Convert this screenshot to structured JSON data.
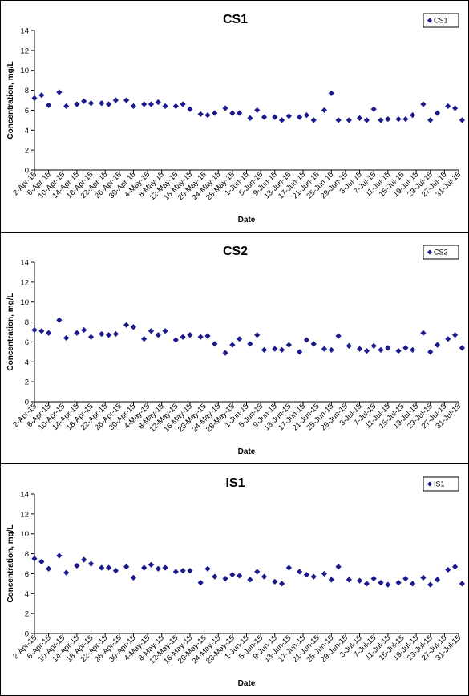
{
  "chart_data": [
    {
      "type": "scatter",
      "title": "CS1",
      "xlabel": "Date",
      "ylabel": "Concentration, mg/L",
      "ylim": [
        0,
        14
      ],
      "yticks": [
        "0",
        "2",
        "4",
        "6",
        "8",
        "10",
        "12",
        "14"
      ],
      "xlim": [
        "2-Apr-15",
        "31-Jul-15"
      ],
      "xticks": [
        "2-Apr-15",
        "6-Apr-15",
        "10-Apr-15",
        "14-Apr-15",
        "18-Apr-15",
        "22-Apr-15",
        "26-Apr-15",
        "30-Apr-15",
        "4-May-15",
        "8-May-15",
        "12-May-15",
        "16-May-15",
        "20-May-15",
        "24-May-15",
        "28-May-15",
        "1-Jun-15",
        "5-Jun-15",
        "9-Jun-15",
        "13-Jun-15",
        "17-Jun-15",
        "21-Jun-15",
        "25-Jun-15",
        "29-Jun-15",
        "3-Jul-15",
        "7-Jul-15",
        "11-Jul-15",
        "15-Jul-15",
        "19-Jul-15",
        "23-Jul-15",
        "27-Jul-15",
        "31-Jul-15"
      ],
      "legend": "top-right",
      "grid": false,
      "marker_color": "#1a1a8c",
      "series": [
        {
          "name": "CS1",
          "x": [
            "2-Apr-15",
            "4-Apr-15",
            "6-Apr-15",
            "9-Apr-15",
            "11-Apr-15",
            "14-Apr-15",
            "16-Apr-15",
            "18-Apr-15",
            "21-Apr-15",
            "23-Apr-15",
            "25-Apr-15",
            "28-Apr-15",
            "30-Apr-15",
            "3-May-15",
            "5-May-15",
            "7-May-15",
            "9-May-15",
            "12-May-15",
            "14-May-15",
            "16-May-15",
            "19-May-15",
            "21-May-15",
            "23-May-15",
            "26-May-15",
            "28-May-15",
            "30-May-15",
            "2-Jun-15",
            "4-Jun-15",
            "6-Jun-15",
            "9-Jun-15",
            "11-Jun-15",
            "13-Jun-15",
            "16-Jun-15",
            "18-Jun-15",
            "20-Jun-15",
            "23-Jun-15",
            "25-Jun-15",
            "27-Jun-15",
            "30-Jun-15",
            "3-Jul-15",
            "5-Jul-15",
            "7-Jul-15",
            "9-Jul-15",
            "11-Jul-15",
            "14-Jul-15",
            "16-Jul-15",
            "18-Jul-15",
            "21-Jul-15",
            "23-Jul-15",
            "25-Jul-15",
            "28-Jul-15",
            "30-Jul-15",
            "1-Aug-15"
          ],
          "y": [
            7.2,
            7.5,
            6.5,
            7.8,
            6.4,
            6.6,
            6.9,
            6.7,
            6.7,
            6.6,
            7.0,
            7.0,
            6.4,
            6.6,
            6.6,
            6.8,
            6.4,
            6.4,
            6.6,
            6.1,
            5.6,
            5.5,
            5.7,
            6.2,
            5.7,
            5.7,
            5.2,
            6.0,
            5.3,
            5.3,
            5.0,
            5.4,
            5.3,
            5.5,
            5.0,
            6.0,
            7.7,
            5.0,
            5.0,
            5.2,
            5.0,
            6.1,
            5.0,
            5.1,
            5.1,
            5.1,
            5.5,
            6.6,
            5.0,
            5.7,
            6.4,
            6.2,
            5.0
          ]
        }
      ]
    },
    {
      "type": "scatter",
      "title": "CS2",
      "xlabel": "Date",
      "ylabel": "Concentration, mg/L",
      "ylim": [
        0,
        14
      ],
      "yticks": [
        "0",
        "2",
        "4",
        "6",
        "8",
        "10",
        "12",
        "14"
      ],
      "xlim": [
        "2-Apr-15",
        "31-Jul-15"
      ],
      "xticks": [
        "2-Apr-15",
        "6-Apr-15",
        "10-Apr-15",
        "14-Apr-15",
        "18-Apr-15",
        "22-Apr-15",
        "26-Apr-15",
        "30-Apr-15",
        "4-May-15",
        "8-May-15",
        "12-May-15",
        "16-May-15",
        "20-May-15",
        "24-May-15",
        "28-May-15",
        "1-Jun-15",
        "5-Jun-15",
        "9-Jun-15",
        "13-Jun-15",
        "17-Jun-15",
        "21-Jun-15",
        "25-Jun-15",
        "29-Jun-15",
        "3-Jul-15",
        "7-Jul-15",
        "11-Jul-15",
        "15-Jul-15",
        "19-Jul-15",
        "23-Jul-15",
        "27-Jul-15",
        "31-Jul-15"
      ],
      "legend": "top-right",
      "grid": false,
      "marker_color": "#1a1a8c",
      "series": [
        {
          "name": "CS2",
          "x": [
            "2-Apr-15",
            "4-Apr-15",
            "6-Apr-15",
            "9-Apr-15",
            "11-Apr-15",
            "14-Apr-15",
            "16-Apr-15",
            "18-Apr-15",
            "21-Apr-15",
            "23-Apr-15",
            "25-Apr-15",
            "28-Apr-15",
            "30-Apr-15",
            "3-May-15",
            "5-May-15",
            "7-May-15",
            "9-May-15",
            "12-May-15",
            "14-May-15",
            "16-May-15",
            "19-May-15",
            "21-May-15",
            "23-May-15",
            "26-May-15",
            "28-May-15",
            "30-May-15",
            "2-Jun-15",
            "4-Jun-15",
            "6-Jun-15",
            "9-Jun-15",
            "11-Jun-15",
            "13-Jun-15",
            "16-Jun-15",
            "18-Jun-15",
            "20-Jun-15",
            "23-Jun-15",
            "25-Jun-15",
            "27-Jun-15",
            "30-Jun-15",
            "3-Jul-15",
            "5-Jul-15",
            "7-Jul-15",
            "9-Jul-15",
            "11-Jul-15",
            "14-Jul-15",
            "16-Jul-15",
            "18-Jul-15",
            "21-Jul-15",
            "23-Jul-15",
            "25-Jul-15",
            "28-Jul-15",
            "30-Jul-15",
            "1-Aug-15"
          ],
          "y": [
            7.2,
            7.1,
            6.9,
            8.2,
            6.4,
            6.9,
            7.2,
            6.5,
            6.8,
            6.7,
            6.8,
            7.7,
            7.5,
            6.3,
            7.1,
            6.7,
            7.1,
            6.2,
            6.5,
            6.7,
            6.5,
            6.6,
            5.8,
            4.9,
            5.7,
            6.3,
            5.8,
            6.7,
            5.2,
            5.3,
            5.2,
            5.7,
            5.0,
            6.2,
            5.8,
            5.3,
            5.2,
            6.6,
            5.6,
            5.3,
            5.1,
            5.6,
            5.2,
            5.4,
            5.1,
            5.4,
            5.2,
            6.9,
            5.0,
            5.7,
            6.3,
            6.7,
            5.4
          ]
        }
      ]
    },
    {
      "type": "scatter",
      "title": "IS1",
      "xlabel": "Date",
      "ylabel": "Concentration, mg/L",
      "ylim": [
        0,
        14
      ],
      "yticks": [
        "0",
        "2",
        "4",
        "6",
        "8",
        "10",
        "12",
        "14"
      ],
      "xlim": [
        "2-Apr-15",
        "31-Jul-15"
      ],
      "xticks": [
        "2-Apr-15",
        "6-Apr-15",
        "10-Apr-15",
        "14-Apr-15",
        "18-Apr-15",
        "22-Apr-15",
        "26-Apr-15",
        "30-Apr-15",
        "4-May-15",
        "8-May-15",
        "12-May-15",
        "16-May-15",
        "20-May-15",
        "24-May-15",
        "28-May-15",
        "1-Jun-15",
        "5-Jun-15",
        "9-Jun-15",
        "13-Jun-15",
        "17-Jun-15",
        "21-Jun-15",
        "25-Jun-15",
        "29-Jun-15",
        "3-Jul-15",
        "7-Jul-15",
        "11-Jul-15",
        "15-Jul-15",
        "19-Jul-15",
        "23-Jul-15",
        "27-Jul-15",
        "31-Jul-15"
      ],
      "legend": "top-right",
      "grid": false,
      "marker_color": "#1a1a8c",
      "series": [
        {
          "name": "IS1",
          "x": [
            "2-Apr-15",
            "4-Apr-15",
            "6-Apr-15",
            "9-Apr-15",
            "11-Apr-15",
            "14-Apr-15",
            "16-Apr-15",
            "18-Apr-15",
            "21-Apr-15",
            "23-Apr-15",
            "25-Apr-15",
            "28-Apr-15",
            "30-Apr-15",
            "3-May-15",
            "5-May-15",
            "7-May-15",
            "9-May-15",
            "12-May-15",
            "14-May-15",
            "16-May-15",
            "19-May-15",
            "21-May-15",
            "23-May-15",
            "26-May-15",
            "28-May-15",
            "30-May-15",
            "2-Jun-15",
            "4-Jun-15",
            "6-Jun-15",
            "9-Jun-15",
            "11-Jun-15",
            "13-Jun-15",
            "16-Jun-15",
            "18-Jun-15",
            "20-Jun-15",
            "23-Jun-15",
            "25-Jun-15",
            "27-Jun-15",
            "30-Jun-15",
            "3-Jul-15",
            "5-Jul-15",
            "7-Jul-15",
            "9-Jul-15",
            "11-Jul-15",
            "14-Jul-15",
            "16-Jul-15",
            "18-Jul-15",
            "21-Jul-15",
            "23-Jul-15",
            "25-Jul-15",
            "28-Jul-15",
            "30-Jul-15",
            "1-Aug-15"
          ],
          "y": [
            7.5,
            7.2,
            6.5,
            7.8,
            6.1,
            6.8,
            7.4,
            7.0,
            6.6,
            6.6,
            6.3,
            6.7,
            5.6,
            6.6,
            6.9,
            6.5,
            6.6,
            6.2,
            6.3,
            6.3,
            5.1,
            6.5,
            5.7,
            5.5,
            5.9,
            5.8,
            5.4,
            6.2,
            5.7,
            5.2,
            5.0,
            6.6,
            6.2,
            5.9,
            5.7,
            6.0,
            5.4,
            6.7,
            5.4,
            5.3,
            5.0,
            5.5,
            5.1,
            4.9,
            5.1,
            5.5,
            5.0,
            5.6,
            4.9,
            5.4,
            6.4,
            6.7,
            5.0
          ]
        }
      ]
    }
  ]
}
